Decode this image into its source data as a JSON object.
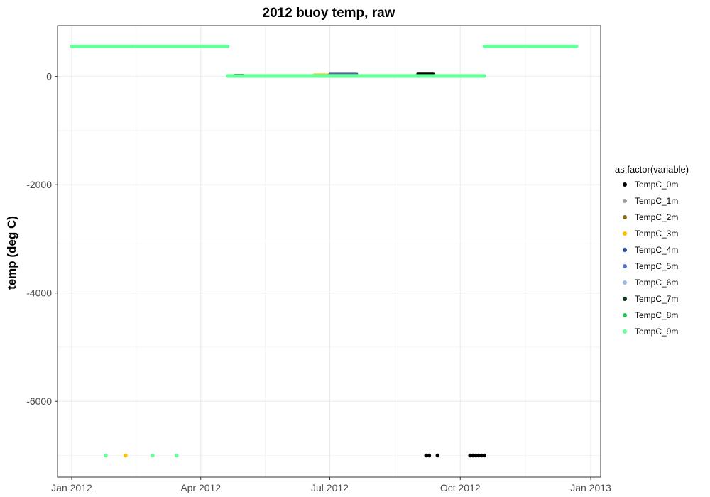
{
  "chart_data": {
    "type": "scatter",
    "title": "2012 buoy temp, raw",
    "xlabel": "",
    "ylabel": "temp (deg C)",
    "x_axis": {
      "type": "date",
      "range": [
        "2011-12-22",
        "2013-01-08"
      ],
      "ticks": [
        {
          "date": "2012-01-01",
          "label": "Jan 2012"
        },
        {
          "date": "2012-04-01",
          "label": "Apr 2012"
        },
        {
          "date": "2012-07-01",
          "label": "Jul 2012"
        },
        {
          "date": "2012-10-01",
          "label": "Oct 2012"
        },
        {
          "date": "2013-01-01",
          "label": "Jan 2013"
        }
      ]
    },
    "y_axis": {
      "range": [
        -7400,
        940
      ],
      "ticks": [
        {
          "value": 0,
          "label": "0"
        },
        {
          "value": -2000,
          "label": "-2000"
        },
        {
          "value": -4000,
          "label": "-4000"
        },
        {
          "value": -6000,
          "label": "-6000"
        }
      ]
    },
    "grid": true,
    "legend": {
      "title": "as.factor(variable)",
      "position": "right",
      "entries": [
        {
          "name": "TempC_0m",
          "color": "#000000"
        },
        {
          "name": "TempC_1m",
          "color": "#999999"
        },
        {
          "name": "TempC_2m",
          "color": "#8b6914"
        },
        {
          "name": "TempC_3m",
          "color": "#ffc000"
        },
        {
          "name": "TempC_4m",
          "color": "#1f3f99"
        },
        {
          "name": "TempC_5m",
          "color": "#5577cc"
        },
        {
          "name": "TempC_6m",
          "color": "#99bbe6"
        },
        {
          "name": "TempC_7m",
          "color": "#0a3d1a"
        },
        {
          "name": "TempC_8m",
          "color": "#22cc55"
        },
        {
          "name": "TempC_9m",
          "color": "#66ff99"
        }
      ]
    },
    "series": [
      {
        "name": "TempC_0m",
        "segments": [
          {
            "x": [
              "2012-04-25",
              "2012-05-01"
            ],
            "y": 20
          },
          {
            "x": [
              "2012-07-01",
              "2012-07-20"
            ],
            "y": 40
          },
          {
            "x": [
              "2012-09-01",
              "2012-09-12"
            ],
            "y": 45
          }
        ],
        "points": [
          {
            "x": "2012-09-07",
            "y": -7000
          },
          {
            "x": "2012-09-09",
            "y": -7000
          },
          {
            "x": "2012-09-15",
            "y": -7000
          },
          {
            "x": "2012-10-08",
            "y": -7000
          },
          {
            "x": "2012-10-10",
            "y": -7000
          },
          {
            "x": "2012-10-12",
            "y": -7000
          },
          {
            "x": "2012-10-14",
            "y": -7000
          },
          {
            "x": "2012-10-16",
            "y": -7000
          },
          {
            "x": "2012-10-18",
            "y": -7000
          }
        ]
      },
      {
        "name": "TempC_1m",
        "segments": [
          {
            "x": [
              "2012-04-20",
              "2012-10-18"
            ],
            "y": 15
          }
        ],
        "points": []
      },
      {
        "name": "TempC_2m",
        "segments": [
          {
            "x": [
              "2012-04-20",
              "2012-10-18"
            ],
            "y": 12
          }
        ],
        "points": []
      },
      {
        "name": "TempC_3m",
        "segments": [
          {
            "x": [
              "2012-06-20",
              "2012-07-10"
            ],
            "y": 30
          }
        ],
        "points": [
          {
            "x": "2012-02-08",
            "y": -7000
          }
        ]
      },
      {
        "name": "TempC_4m",
        "segments": [
          {
            "x": [
              "2012-07-01",
              "2012-07-20"
            ],
            "y": 35
          }
        ],
        "points": []
      },
      {
        "name": "TempC_5m",
        "segments": [
          {
            "x": [
              "2012-07-01",
              "2012-07-20"
            ],
            "y": 32
          }
        ],
        "points": []
      },
      {
        "name": "TempC_6m",
        "segments": [
          {
            "x": [
              "2012-04-20",
              "2012-10-18"
            ],
            "y": 10
          }
        ],
        "points": []
      },
      {
        "name": "TempC_7m",
        "segments": [
          {
            "x": [
              "2012-04-20",
              "2012-10-18"
            ],
            "y": 8
          }
        ],
        "points": []
      },
      {
        "name": "TempC_8m",
        "segments": [
          {
            "x": [
              "2012-04-20",
              "2012-10-18"
            ],
            "y": 5
          }
        ],
        "points": []
      },
      {
        "name": "TempC_9m",
        "segments": [
          {
            "x": [
              "2012-01-01",
              "2012-04-20"
            ],
            "y": 555
          },
          {
            "x": [
              "2012-04-20",
              "2012-10-18"
            ],
            "y": 10
          },
          {
            "x": [
              "2012-10-18",
              "2012-12-22"
            ],
            "y": 555
          }
        ],
        "points": [
          {
            "x": "2012-01-25",
            "y": -7000
          },
          {
            "x": "2012-02-27",
            "y": -7000
          },
          {
            "x": "2012-03-15",
            "y": -7000
          }
        ]
      }
    ]
  }
}
